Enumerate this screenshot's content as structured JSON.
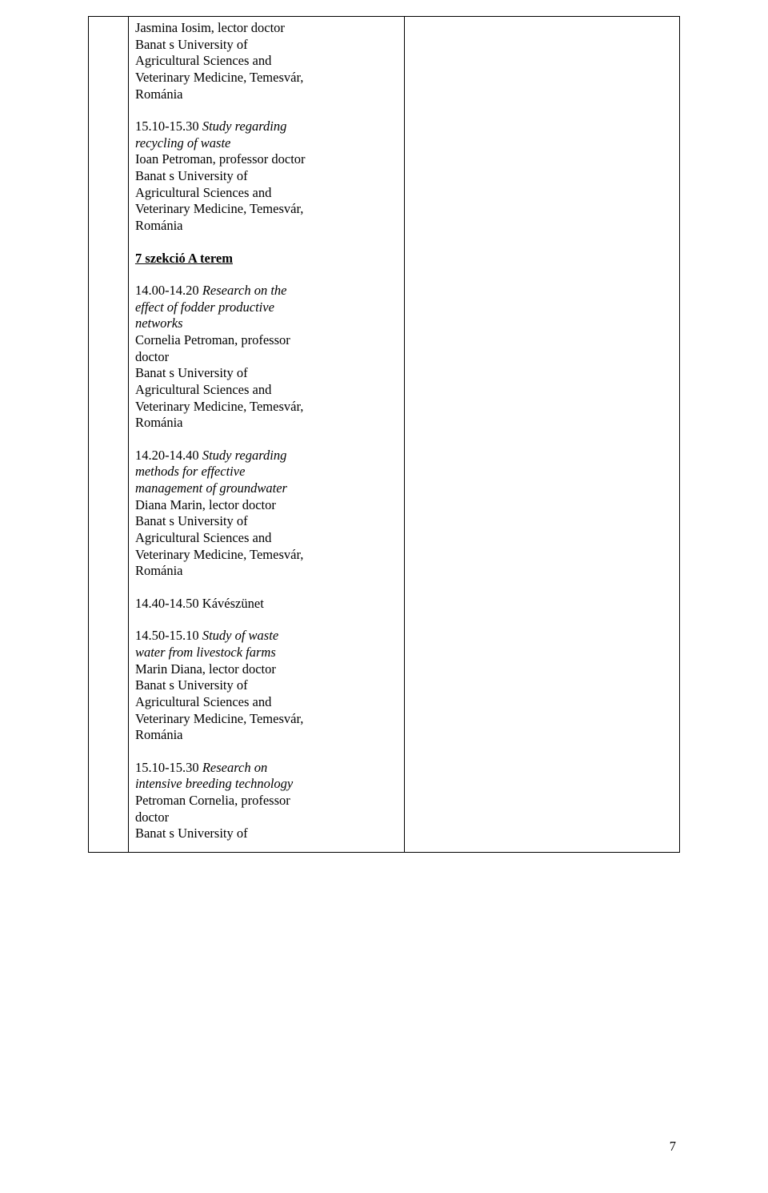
{
  "entries": {
    "e1": {
      "author": "Jasmina Iosim, lector doctor",
      "affil1": "Banat s University of",
      "affil2": "Agricultural Sciences and",
      "affil3": "Veterinary Medicine, Temesvár,",
      "affil4": "Románia"
    },
    "e2": {
      "time_title1": "15.10-15.30 Study regarding",
      "time_title2": "recycling of waste",
      "author": "Ioan Petroman, professor doctor",
      "affil1": "Banat s University of",
      "affil2": "Agricultural Sciences and",
      "affil3": "Veterinary Medicine, Temesvár,",
      "affil4": "Románia"
    },
    "section": {
      "label": "7 szekció A terem"
    },
    "e3": {
      "time": "14.00-14.20 ",
      "title1": "Research on the",
      "title2": "effect of fodder productive",
      "title3": "networks",
      "author1": "Cornelia Petroman, professor",
      "author2": "doctor",
      "affil1": "Banat s University of",
      "affil2": "Agricultural Sciences and",
      "affil3": "Veterinary Medicine, Temesvár,",
      "affil4": "Románia"
    },
    "e4": {
      "time": "14.20-14.40 ",
      "title1": "Study regarding",
      "title2": "methods for effective",
      "title3": "management of groundwater",
      "author": "Diana Marin, lector doctor",
      "affil1": "Banat s University of",
      "affil2": "Agricultural Sciences and",
      "affil3": "Veterinary Medicine, Temesvár,",
      "affil4": "Románia"
    },
    "break": {
      "label": "14.40-14.50 Kávészünet"
    },
    "e5": {
      "time": "14.50-15.10 ",
      "title1": "Study of waste",
      "title2": "water from livestock farms",
      "author": "Marin Diana, lector doctor",
      "affil1": "Banat s University of",
      "affil2": "Agricultural Sciences and",
      "affil3": "Veterinary Medicine, Temesvár,",
      "affil4": "Románia"
    },
    "e6": {
      "time": "15.10-15.30 ",
      "title1": "Research on",
      "title2": "intensive breeding technology",
      "author1": "Petroman Cornelia, professor",
      "author2": "doctor",
      "affil1": "Banat s University of"
    }
  },
  "page_number": "7"
}
